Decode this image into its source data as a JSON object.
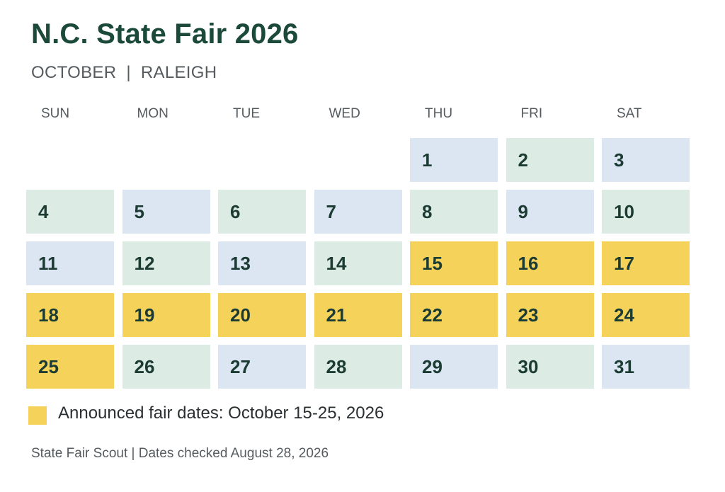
{
  "header": {
    "title": "N.C. State Fair 2026",
    "subtitle_month": "OCTOBER",
    "subtitle_sep": "|",
    "subtitle_city": "RALEIGH"
  },
  "weekdays": [
    "SUN",
    "MON",
    "TUE",
    "WED",
    "THU",
    "FRI",
    "SAT"
  ],
  "calendar": {
    "start_weekday_index": 4,
    "days": [
      {
        "label": "1",
        "style": "blue"
      },
      {
        "label": "2",
        "style": "green"
      },
      {
        "label": "3",
        "style": "blue"
      },
      {
        "label": "4",
        "style": "green"
      },
      {
        "label": "5",
        "style": "blue"
      },
      {
        "label": "6",
        "style": "green"
      },
      {
        "label": "7",
        "style": "blue"
      },
      {
        "label": "8",
        "style": "green"
      },
      {
        "label": "9",
        "style": "blue"
      },
      {
        "label": "10",
        "style": "green"
      },
      {
        "label": "11",
        "style": "blue"
      },
      {
        "label": "12",
        "style": "green"
      },
      {
        "label": "13",
        "style": "blue"
      },
      {
        "label": "14",
        "style": "green"
      },
      {
        "label": "15",
        "style": "gold"
      },
      {
        "label": "16",
        "style": "gold"
      },
      {
        "label": "17",
        "style": "gold"
      },
      {
        "label": "18",
        "style": "gold"
      },
      {
        "label": "19",
        "style": "gold"
      },
      {
        "label": "20",
        "style": "gold"
      },
      {
        "label": "21",
        "style": "gold"
      },
      {
        "label": "22",
        "style": "gold"
      },
      {
        "label": "23",
        "style": "gold"
      },
      {
        "label": "24",
        "style": "gold"
      },
      {
        "label": "25",
        "style": "gold"
      },
      {
        "label": "26",
        "style": "green"
      },
      {
        "label": "27",
        "style": "blue"
      },
      {
        "label": "28",
        "style": "green"
      },
      {
        "label": "29",
        "style": "blue"
      },
      {
        "label": "30",
        "style": "green"
      },
      {
        "label": "31",
        "style": "blue"
      }
    ]
  },
  "colors": {
    "title": "#1b4a3b",
    "blue_cell": "#dce6f3",
    "green_cell": "#dcebe3",
    "fair_highlight": "#f5d35a"
  },
  "legend": {
    "text": "Announced fair dates: October 15-25, 2026"
  },
  "footer": {
    "text": "State Fair Scout | Dates checked August 28, 2026"
  }
}
